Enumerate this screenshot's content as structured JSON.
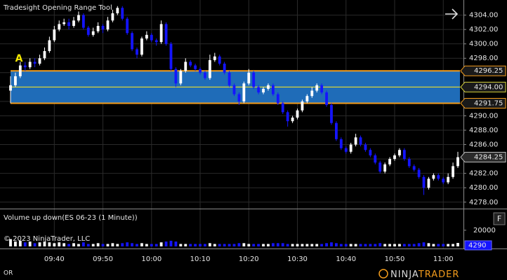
{
  "chart_data": [
    {
      "type": "candlestick",
      "title": "Tradesight Opening Range Tool",
      "annotation": "A",
      "categories": [
        null,
        null,
        null,
        null,
        null,
        null,
        null,
        null,
        null,
        "09:40",
        null,
        null,
        null,
        null,
        null,
        null,
        null,
        null,
        null,
        "09:50",
        null,
        null,
        null,
        null,
        null,
        null,
        null,
        null,
        null,
        "10:00",
        null,
        null,
        null,
        null,
        null,
        null,
        null,
        null,
        null,
        "10:10",
        null,
        null,
        null,
        null,
        null,
        null,
        null,
        null,
        null,
        "10:20",
        null,
        null,
        null,
        null,
        null,
        null,
        null,
        null,
        null,
        "10:30",
        null,
        null,
        null,
        null,
        null,
        null,
        null,
        null,
        null,
        "10:40",
        null,
        null,
        null,
        null,
        null,
        null,
        null,
        null,
        null,
        "10:50",
        null,
        null,
        null,
        null,
        null,
        null,
        null,
        null,
        null,
        "11:00",
        null,
        null,
        null
      ],
      "open": [
        4293.5,
        4294.25,
        4295.5,
        4297,
        4296.75,
        4297.5,
        4297.25,
        4298,
        4299,
        4300.5,
        4302,
        4302.75,
        4303,
        4302.5,
        4303.25,
        4304,
        4302.25,
        4301.25,
        4301.75,
        4302.5,
        4302,
        4303.25,
        4304.25,
        4305,
        4303.5,
        4301.5,
        4299.25,
        4298.5,
        4300.75,
        4301.25,
        4300.5,
        4300.25,
        4302.75,
        4300,
        4296.5,
        4294.5,
        4296.25,
        4297.5,
        4297,
        4296.5,
        4296,
        4295.25,
        4297.75,
        4298.25,
        4297.25,
        4296,
        4294.25,
        4293,
        4292,
        4294.5,
        4296,
        4294,
        4293.25,
        4293.75,
        4294.25,
        4293,
        4291.75,
        4290.5,
        4289.25,
        4289.75,
        4290.75,
        4292,
        4292.75,
        4293.5,
        4294.25,
        4293.25,
        4291.5,
        4289,
        4286.75,
        4285.5,
        4285,
        4286,
        4287,
        4286,
        4285.25,
        4284.5,
        4283.5,
        4282.25,
        4283.25,
        4284,
        4284.5,
        4285.25,
        4284,
        4283,
        4282.5,
        4281.5,
        4280,
        4281.25,
        4281.75,
        4281.25,
        4280.75,
        4281.5,
        4283
      ],
      "high": [
        4295.5,
        4296,
        4297.5,
        4297.5,
        4298,
        4298,
        4298.5,
        4299.5,
        4301,
        4302.5,
        4303.25,
        4303.5,
        4303.5,
        4303.75,
        4304.5,
        4304.25,
        4302.5,
        4302.25,
        4303,
        4302.75,
        4303.75,
        4304.75,
        4305.25,
        4305.25,
        4303.75,
        4301.75,
        4299.5,
        4301,
        4301.75,
        4301.5,
        4300.75,
        4303.25,
        4303,
        4300.25,
        4296.75,
        4296.5,
        4298,
        4297.75,
        4297.25,
        4296.75,
        4296.25,
        4298.5,
        4298.75,
        4298.5,
        4297.5,
        4296.25,
        4294.5,
        4293.25,
        4294.75,
        4296.5,
        4296.25,
        4294.25,
        4294,
        4294.5,
        4294.5,
        4293.25,
        4292,
        4290.75,
        4290,
        4291,
        4292.25,
        4293,
        4294,
        4294.5,
        4294.5,
        4293.5,
        4291.75,
        4289.25,
        4287,
        4285.75,
        4286.25,
        4287.5,
        4287.25,
        4286.25,
        4285.5,
        4284.75,
        4283.75,
        4283.5,
        4284.25,
        4284.75,
        4285.5,
        4285.5,
        4284.25,
        4283.25,
        4282.75,
        4281.75,
        4281.5,
        4282,
        4282,
        4281.5,
        4282,
        4283.5,
        4285
      ],
      "low": [
        4291.75,
        4294,
        4295.25,
        4296.25,
        4296.5,
        4296.75,
        4297,
        4297.75,
        4298.75,
        4300.25,
        4301.75,
        4302.5,
        4302,
        4302.25,
        4303,
        4302,
        4301,
        4301,
        4301.5,
        4301.5,
        4301.75,
        4303,
        4304,
        4303.25,
        4301.25,
        4299,
        4298,
        4298.25,
        4300.5,
        4300.25,
        4299.75,
        4300,
        4299.75,
        4296.25,
        4294,
        4294.25,
        4296,
        4296.75,
        4296.25,
        4295.75,
        4295,
        4295,
        4297.5,
        4297,
        4295.75,
        4294,
        4292.75,
        4291.5,
        4291.75,
        4294.25,
        4293.75,
        4293,
        4293,
        4293.5,
        4292.75,
        4291.5,
        4290.25,
        4288.5,
        4289,
        4289.5,
        4290.5,
        4291.75,
        4292.5,
        4293.25,
        4293,
        4291.25,
        4288.75,
        4286.5,
        4285.25,
        4284.75,
        4284.75,
        4285.75,
        4285.75,
        4285,
        4284.25,
        4283.25,
        4282,
        4282,
        4283,
        4283.75,
        4284.25,
        4283.75,
        4282.75,
        4282.25,
        4281.25,
        4279,
        4279.75,
        4281,
        4281,
        4280.5,
        4280.5,
        4281.25,
        4282.75
      ],
      "close": [
        4294.25,
        4295.5,
        4297,
        4296.75,
        4297.5,
        4297.25,
        4298,
        4299,
        4300.5,
        4302,
        4302.75,
        4303,
        4302.5,
        4303.25,
        4304,
        4302.25,
        4301.25,
        4301.75,
        4302.5,
        4302,
        4303.25,
        4304.25,
        4305,
        4303.5,
        4301.5,
        4299.25,
        4298.5,
        4300.75,
        4301.25,
        4300.5,
        4300.25,
        4302.75,
        4300,
        4296.5,
        4294.5,
        4296.25,
        4297.5,
        4297,
        4296.5,
        4296,
        4295.25,
        4297.75,
        4298.25,
        4297.25,
        4296,
        4294.25,
        4293,
        4292,
        4294.5,
        4296,
        4294,
        4293.25,
        4293.75,
        4294.25,
        4293,
        4291.75,
        4290.5,
        4289.25,
        4289.75,
        4290.75,
        4292,
        4292.75,
        4293.5,
        4294.25,
        4293.25,
        4291.5,
        4289,
        4286.75,
        4285.5,
        4285,
        4286,
        4287,
        4286,
        4285.25,
        4284.5,
        4283.5,
        4282.25,
        4283.25,
        4284,
        4284.5,
        4285.25,
        4284,
        4283,
        4282.5,
        4281.5,
        4280,
        4281.25,
        4281.75,
        4281.25,
        4280.75,
        4281.5,
        4283,
        4284.25
      ],
      "up_color": "#ffffff",
      "down_color": "#1414ff",
      "opening_range": {
        "high": 4296.25,
        "mid": {
          "value": 4294,
          "label": "4294.00"
        },
        "low": 4291.75,
        "fill": "#1f6cb8",
        "border_color": "#f39c1c",
        "mid_color": "#d6d23a"
      },
      "ylim": [
        4277.1,
        4306.1
      ],
      "yticks": [
        {
          "value": 4278,
          "label": "4278.00"
        },
        {
          "value": 4280,
          "label": "4280.00"
        },
        {
          "value": 4282,
          "label": "4282.00"
        },
        {
          "value": 4284,
          "label": "4284.00"
        },
        {
          "value": 4286,
          "label": "4286.00"
        },
        {
          "value": 4288,
          "label": "4288.00"
        },
        {
          "value": 4290,
          "label": "4290.00"
        },
        {
          "value": 4292,
          "label": "4292.00"
        },
        {
          "value": 4294,
          "label": "4294.00"
        },
        {
          "value": 4296,
          "label": "4296.00"
        },
        {
          "value": 4298,
          "label": "4298.00"
        },
        {
          "value": 4300,
          "label": "4300.00"
        },
        {
          "value": 4302,
          "label": "4302.00"
        },
        {
          "value": 4304,
          "label": "4304.00"
        }
      ],
      "grid": true
    },
    {
      "type": "bar",
      "title": "Volume up down(ES 06-23 (1 Minute))",
      "values": [
        9000,
        6000,
        7000,
        5000,
        6000,
        4000,
        5000,
        6000,
        5000,
        4000,
        5000,
        4000,
        3000,
        4000,
        3000,
        5000,
        3000,
        3000,
        4000,
        3000,
        3000,
        4000,
        3000,
        4000,
        5000,
        4000,
        3000,
        4000,
        3000,
        3000,
        3000,
        5000,
        6000,
        7000,
        6000,
        3000,
        3000,
        3000,
        3000,
        3000,
        3000,
        4000,
        3000,
        3000,
        3000,
        3000,
        3000,
        4000,
        4000,
        3000,
        3000,
        3000,
        3000,
        3000,
        4000,
        4000,
        4000,
        3000,
        3000,
        3000,
        3000,
        3000,
        3000,
        3000,
        3000,
        4000,
        5000,
        4000,
        3000,
        3000,
        3000,
        3000,
        3000,
        3000,
        3000,
        3000,
        4000,
        3000,
        3000,
        3000,
        3000,
        3000,
        3000,
        3000,
        4000,
        5000,
        4000,
        3000,
        3000,
        3000,
        3000,
        3000,
        4290
      ],
      "ylim": [
        0,
        45000
      ],
      "yticks": [
        20000
      ]
    }
  ],
  "footer": {
    "copyright": "© 2023 NinjaTrader, LLC",
    "mode": "OR",
    "panel_button": "F",
    "logo_first": "NINJA",
    "logo_second": "TRADER"
  }
}
